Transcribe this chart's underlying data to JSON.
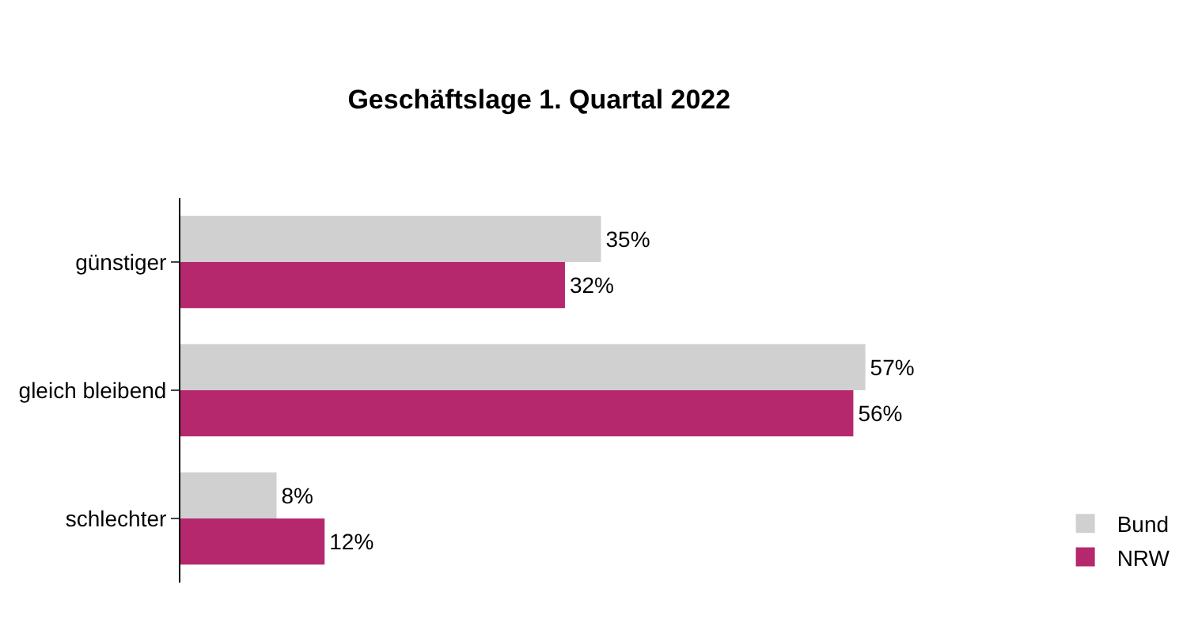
{
  "chart_data": {
    "type": "bar",
    "orientation": "horizontal",
    "title": "Geschäftslage 1. Quartal 2022",
    "categories": [
      "günstiger",
      "gleich bleibend",
      "schlechter"
    ],
    "series": [
      {
        "name": "Bund",
        "color": "#d0d0d0",
        "values": [
          35,
          57,
          8
        ],
        "value_labels": [
          "35%",
          "57%",
          "8%"
        ]
      },
      {
        "name": "NRW",
        "color": "#b5286e",
        "values": [
          32,
          56,
          12
        ],
        "value_labels": [
          "32%",
          "56%",
          "12%"
        ]
      }
    ],
    "legend": "bottom right"
  }
}
